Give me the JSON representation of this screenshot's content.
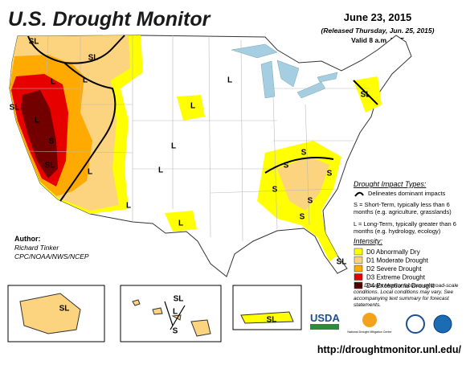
{
  "header": {
    "title": "U.S. Drought Monitor",
    "date": "June 23, 2015",
    "released": "(Released Thursday, Jun. 25, 2015)",
    "valid": "Valid 8 a.m. EDT"
  },
  "impact_legend": {
    "title": "Drought Impact Types:",
    "line": "Delineates dominant impacts",
    "short_term": "S = Short-Term, typically less than 6 months (e.g. agriculture, grasslands)",
    "long_term": "L = Long-Term, typically greater than 6 months (e.g. hydrology, ecology)"
  },
  "intensity_legend": {
    "title": "Intensity:",
    "items": [
      {
        "label": "D0 Abnormally Dry",
        "color": "#ffff00"
      },
      {
        "label": "D1 Moderate Drought",
        "color": "#fcd37f"
      },
      {
        "label": "D2 Severe Drought",
        "color": "#ffaa00"
      },
      {
        "label": "D3 Extreme Drought",
        "color": "#e60000"
      },
      {
        "label": "D4 Exceptional Drought",
        "color": "#730000"
      }
    ]
  },
  "author": {
    "heading": "Author:",
    "name": "Richard Tinker",
    "org": "CPC/NOAA/NWS/NCEP"
  },
  "note": "The Drought Monitor focuses on broad-scale conditions. Local conditions may vary. See accompanying text summary for forecast statements.",
  "url": "http://droughtmonitor.unl.edu/",
  "logos": {
    "usda": "USDA",
    "ndmc": "National Drought Mitigation Center"
  },
  "map_labels": [
    "SL",
    "SL",
    "L",
    "L",
    "SL",
    "L",
    "S",
    "SL",
    "L",
    "L",
    "L",
    "L",
    "L",
    "L",
    "L",
    "SL",
    "S",
    "S",
    "S",
    "S",
    "S",
    "S",
    "SL",
    "SL",
    "SL",
    "L",
    "S",
    "SL"
  ]
}
